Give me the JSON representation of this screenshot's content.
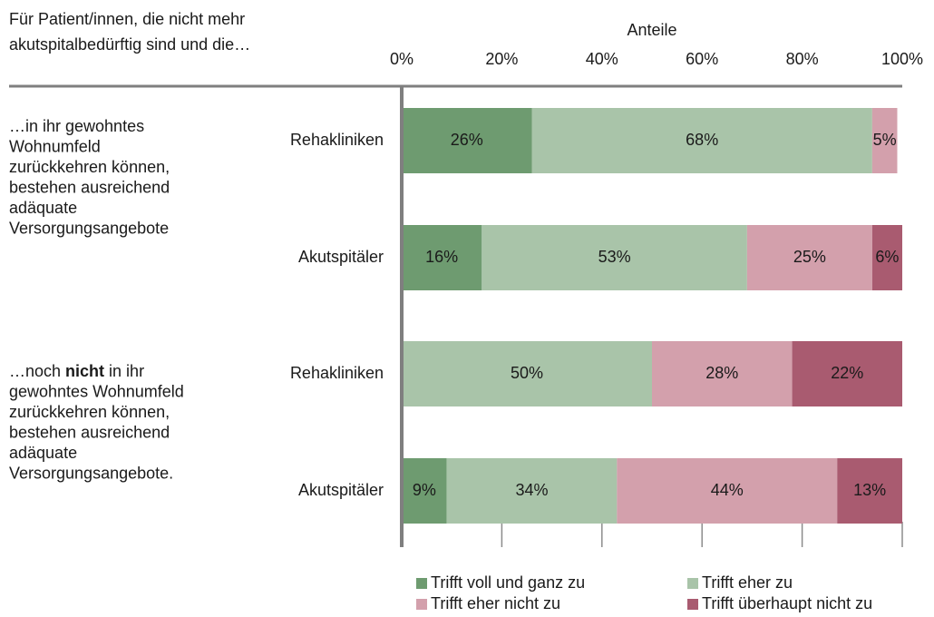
{
  "chart_data": {
    "type": "stacked-bar-horizontal",
    "subtitle_lines": [
      "Für Patient/innen, die nicht mehr",
      "akutspitalbedürftig sind und die…"
    ],
    "x_label": "Anteile",
    "xlim": [
      0,
      100
    ],
    "xticks": [
      {
        "value": 0,
        "label": "0%"
      },
      {
        "value": 20,
        "label": "20%"
      },
      {
        "value": 40,
        "label": "40%"
      },
      {
        "value": 60,
        "label": "60%"
      },
      {
        "value": 80,
        "label": "80%"
      },
      {
        "value": 100,
        "label": "100%"
      }
    ],
    "categories": [
      "Rehakliniken",
      "Akutspitäler",
      "Rehakliniken",
      "Akutspitäler"
    ],
    "groups": [
      {
        "lines": [
          "…in ihr gewohntes",
          "Wohnumfeld",
          "zurückkehren können,",
          "bestehen ausreichend",
          "adäquate",
          "Versorgungsangebote"
        ]
      },
      {
        "lead": [
          "…noch ",
          "nicht",
          " in ihr"
        ],
        "lines": [
          "gewohntes Wohnumfeld",
          "zurückkehren können,",
          "bestehen ausreichend",
          "adäquate",
          "Versorgungsangebote."
        ]
      }
    ],
    "series": [
      {
        "name": "Trifft voll und ganz zu",
        "color": "#6e9b70",
        "values": [
          26,
          16,
          null,
          9
        ],
        "value_labels": [
          "26%",
          "16%",
          null,
          "9%"
        ]
      },
      {
        "name": "Trifft eher zu",
        "color": "#a9c4a9",
        "values": [
          68,
          53,
          50,
          34
        ],
        "value_labels": [
          "68%",
          "53%",
          "50%",
          "34%"
        ]
      },
      {
        "name": "Trifft eher nicht zu",
        "color": "#d3a0ac",
        "values": [
          5,
          25,
          28,
          44
        ],
        "value_labels": [
          "5%",
          "25%",
          "28%",
          "44%"
        ]
      },
      {
        "name": "Trifft überhaupt nicht zu",
        "color": "#a95b70",
        "values": [
          null,
          6,
          22,
          13
        ],
        "value_labels": [
          null,
          "6%",
          "22%",
          "13%"
        ]
      }
    ]
  }
}
